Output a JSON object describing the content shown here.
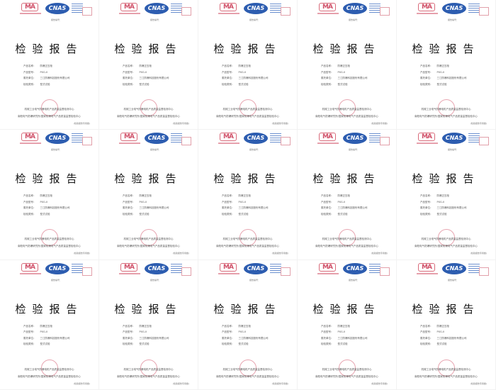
{
  "report": {
    "logo_ma": "MA",
    "logo_cnas": "CNAS",
    "report_no_label": "报告编号：",
    "title": "检验报告",
    "fields": [
      {
        "label": "产品名称：",
        "value": "防爆正压柜"
      },
      {
        "label": "产品型号：",
        "value": "PXG-Ⅱ"
      },
      {
        "label": "委托单位：",
        "value": "三江防爆科技股份有限公司"
      },
      {
        "label": "检验类别：",
        "value": "型式试验"
      }
    ],
    "issuer_line1": "机械工业电气防爆电机产品质量监督检测中心",
    "issuer_line2": "南阳电气防爆研究所/国家防爆电气产品质量监督检验中心",
    "sign_label": "(检验报告专用章)"
  },
  "page_count": 15
}
